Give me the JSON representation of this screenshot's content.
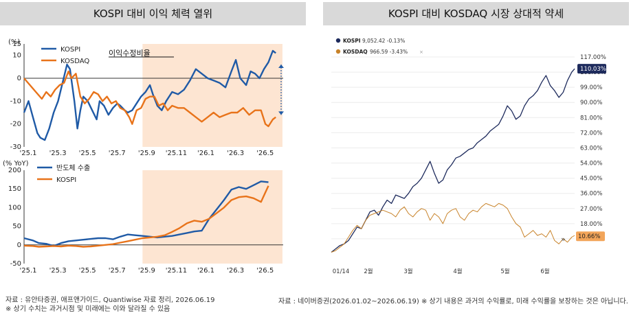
{
  "left_title": "KOSPI 대비 이익 체력 열위",
  "right_title": "KOSPI 대비 KOSDAQ 시장 상대적 약세",
  "footer_left_1": "자료 : 유안타증권,  애프앤가이드, Quantiwise 자료 정리, 2026.06.19",
  "footer_left_2": "※ 상기 수치는 과거시점 및 미래에는 이와 달라질 수 있음",
  "footer_right": "자료 : 네이버증권(2026.01.02~2026.06.19) ※ 상기 내용은 과거의 수익률로, 미래 수익률을 보장하는 것은 아닙니다.",
  "colors": {
    "kospi_blue": "#1f5aa6",
    "kosdaq_orange": "#e8731a",
    "shade": "#fde5d2",
    "navy": "#1d2a5c",
    "tan": "#c8832a"
  },
  "chart_data": [
    {
      "type": "line",
      "subtitle": "이익수정비율",
      "ylabel": "(%)",
      "ylim": [
        -30,
        15
      ],
      "yticks": [
        "15",
        "10",
        "0",
        "-10",
        "-20",
        "-30"
      ],
      "x_tick_labels": [
        "'25.1",
        "'25.3",
        "'25.5",
        "'25.7",
        "'25.9",
        "'25.11",
        "'26.1",
        "'26.3",
        "'26.5"
      ],
      "x_range_months": [
        0,
        17.5
      ],
      "shade_start_month": 8,
      "series": [
        {
          "name": "KOSPI",
          "color": "#1f5aa6",
          "x": [
            0,
            0.3,
            0.6,
            0.9,
            1.1,
            1.4,
            1.7,
            2,
            2.3,
            2.6,
            2.9,
            3.1,
            3.4,
            3.6,
            3.8,
            4,
            4.3,
            4.6,
            4.9,
            5.1,
            5.4,
            5.7,
            6,
            6.3,
            6.5,
            6.8,
            7,
            7.3,
            7.6,
            7.9,
            8.2,
            8.5,
            8.7,
            9,
            9.3,
            9.6,
            10,
            10.4,
            10.8,
            11.2,
            11.6,
            12,
            12.4,
            12.8,
            13.2,
            13.6,
            14,
            14.3,
            14.6,
            15,
            15.3,
            15.6,
            15.9,
            16.2,
            16.5,
            16.8,
            17
          ],
          "y": [
            -15,
            -10,
            -17,
            -24,
            -26,
            -27,
            -22,
            -15,
            -10,
            -2,
            6,
            4,
            -10,
            -22,
            -14,
            -8,
            -10,
            -14,
            -18,
            -10,
            -12,
            -16,
            -13,
            -11,
            -12,
            -14,
            -15,
            -14,
            -11,
            -8,
            -6,
            -3,
            -7,
            -12,
            -14,
            -10,
            -6,
            -7,
            -5,
            -1,
            4,
            2,
            0,
            -1,
            -2,
            -4,
            3,
            8,
            0,
            -3,
            3,
            2,
            0,
            4,
            7,
            12,
            11
          ]
        },
        {
          "name": "KOSDAQ",
          "color": "#e8731a",
          "x": [
            0,
            0.4,
            0.8,
            1.2,
            1.5,
            1.8,
            2.1,
            2.4,
            2.7,
            3,
            3.2,
            3.5,
            3.8,
            4.1,
            4.4,
            4.7,
            5,
            5.3,
            5.6,
            5.9,
            6.2,
            6.5,
            6.8,
            7.1,
            7.3,
            7.6,
            7.9,
            8.2,
            8.5,
            8.8,
            9.1,
            9.4,
            9.7,
            10,
            10.4,
            10.8,
            11.2,
            11.6,
            12,
            12.4,
            12.8,
            13.2,
            13.6,
            14,
            14.4,
            14.8,
            15.2,
            15.6,
            16,
            16.3,
            16.5,
            16.8,
            17
          ],
          "y": [
            0,
            -3,
            -6,
            -9,
            -6,
            -8,
            -5,
            -3,
            -2,
            3,
            0,
            2,
            -8,
            -11,
            -9,
            -6,
            -7,
            -10,
            -8,
            -11,
            -10,
            -13,
            -14,
            -17,
            -20,
            -14,
            -13,
            -9,
            -8,
            -8,
            -12,
            -11,
            -14,
            -12,
            -13,
            -13,
            -15,
            -17,
            -19,
            -17,
            -15,
            -17,
            -16,
            -15,
            -15,
            -13,
            -16,
            -14,
            -14,
            -20,
            -21,
            -18,
            -17
          ]
        }
      ],
      "annotation": "arrow-gap"
    },
    {
      "type": "line",
      "ylabel": "(% YoY)",
      "ylim": [
        -50,
        200
      ],
      "yticks": [
        "200",
        "150",
        "100",
        "50",
        "0",
        "-50"
      ],
      "x_tick_labels": [
        "'25.1",
        "'25.3",
        "'25.5",
        "'25.7",
        "'25.9",
        "'25.11",
        "'26.1",
        "'26.3",
        "'26.5"
      ],
      "x_range_months": [
        0,
        17.5
      ],
      "shade_start_month": 8,
      "series": [
        {
          "name": "반도체 수출",
          "color": "#1f5aa6",
          "x": [
            0,
            0.6,
            1,
            1.5,
            2,
            2.5,
            3,
            3.5,
            4,
            4.5,
            5,
            5.5,
            6,
            6.5,
            7,
            7.5,
            8,
            8.5,
            9,
            9.5,
            10,
            10.5,
            11,
            11.5,
            12,
            12.5,
            13,
            13.5,
            14,
            14.5,
            15,
            15.5,
            16,
            16.5
          ],
          "y": [
            18,
            12,
            5,
            3,
            -3,
            5,
            10,
            12,
            14,
            16,
            18,
            18,
            15,
            22,
            28,
            26,
            24,
            22,
            20,
            22,
            24,
            28,
            32,
            36,
            38,
            70,
            95,
            120,
            148,
            155,
            150,
            160,
            170,
            168
          ]
        },
        {
          "name": "KOSPI",
          "color": "#e8731a",
          "x": [
            0,
            0.6,
            1,
            1.5,
            2,
            2.5,
            3,
            3.5,
            4,
            4.5,
            5,
            5.5,
            6,
            6.5,
            7,
            7.5,
            8,
            8.5,
            9,
            9.5,
            10,
            10.5,
            11,
            11.5,
            12,
            12.5,
            13,
            13.5,
            14,
            14.5,
            15,
            15.5,
            16,
            16.5
          ],
          "y": [
            -2,
            -3,
            -5,
            -4,
            -3,
            -4,
            -2,
            -3,
            -5,
            -4,
            -2,
            0,
            2,
            6,
            10,
            14,
            18,
            20,
            22,
            26,
            35,
            45,
            58,
            65,
            62,
            70,
            85,
            100,
            120,
            128,
            130,
            125,
            115,
            158
          ]
        }
      ]
    },
    {
      "type": "line",
      "ylim": [
        0,
        117
      ],
      "yticks": [
        "117.00%",
        "108.00%",
        "99.00%",
        "90.00%",
        "81.00%",
        "72.00%",
        "63.00%",
        "54.00%",
        "45.00%",
        "36.00%",
        "27.00%",
        "18.00%",
        "9.00%"
      ],
      "x_tick_labels": [
        "01/14",
        "2월",
        "3월",
        "4월",
        "5월",
        "6월"
      ],
      "x_range_days": [
        0,
        170
      ],
      "legend": [
        {
          "name": "KOSPI",
          "value": "9,052.42",
          "change": "-0.13%",
          "color": "#1d2a5c"
        },
        {
          "name": "KOSDAQ",
          "value": "966.59",
          "change": "-3.43%",
          "color": "#c8832a"
        }
      ],
      "last_labels": {
        "kospi": "110.03%",
        "kosdaq": "10.66%"
      },
      "series": [
        {
          "name": "KOSPI",
          "color": "#1d2a5c",
          "x": [
            0,
            3,
            6,
            9,
            12,
            15,
            18,
            21,
            24,
            27,
            30,
            33,
            36,
            39,
            42,
            45,
            48,
            51,
            54,
            57,
            60,
            63,
            66,
            69,
            72,
            75,
            78,
            81,
            84,
            87,
            90,
            93,
            96,
            99,
            102,
            105,
            108,
            111,
            114,
            117,
            120,
            123,
            126,
            129,
            132,
            135,
            138,
            141,
            144,
            147,
            150,
            153,
            156,
            159,
            162,
            165,
            168,
            170
          ],
          "y": [
            1,
            3,
            5,
            6,
            8,
            12,
            16,
            15,
            20,
            25,
            26,
            23,
            28,
            32,
            30,
            35,
            34,
            33,
            36,
            40,
            42,
            45,
            50,
            55,
            48,
            42,
            44,
            50,
            53,
            57,
            58,
            60,
            62,
            63,
            66,
            68,
            70,
            73,
            75,
            77,
            82,
            88,
            85,
            80,
            82,
            88,
            92,
            94,
            97,
            102,
            106,
            100,
            97,
            93,
            96,
            103,
            108,
            110
          ]
        },
        {
          "name": "KOSDAQ",
          "color": "#c8832a",
          "x": [
            0,
            3,
            6,
            9,
            12,
            15,
            18,
            21,
            24,
            27,
            30,
            33,
            36,
            39,
            42,
            45,
            48,
            51,
            54,
            57,
            60,
            63,
            66,
            69,
            72,
            75,
            78,
            81,
            84,
            87,
            90,
            93,
            96,
            99,
            102,
            105,
            108,
            111,
            114,
            117,
            120,
            123,
            126,
            129,
            132,
            135,
            138,
            141,
            144,
            147,
            150,
            153,
            156,
            159,
            162,
            165,
            168,
            170
          ],
          "y": [
            1,
            2,
            4,
            6,
            10,
            14,
            17,
            15,
            20,
            23,
            24,
            25,
            26,
            25,
            24,
            22,
            26,
            28,
            24,
            22,
            25,
            27,
            26,
            20,
            24,
            22,
            18,
            24,
            26,
            27,
            22,
            20,
            24,
            26,
            25,
            28,
            30,
            29,
            28,
            30,
            29,
            27,
            22,
            18,
            16,
            10,
            12,
            14,
            11,
            12,
            10,
            14,
            8,
            6,
            9,
            7,
            10,
            11
          ]
        }
      ]
    }
  ]
}
